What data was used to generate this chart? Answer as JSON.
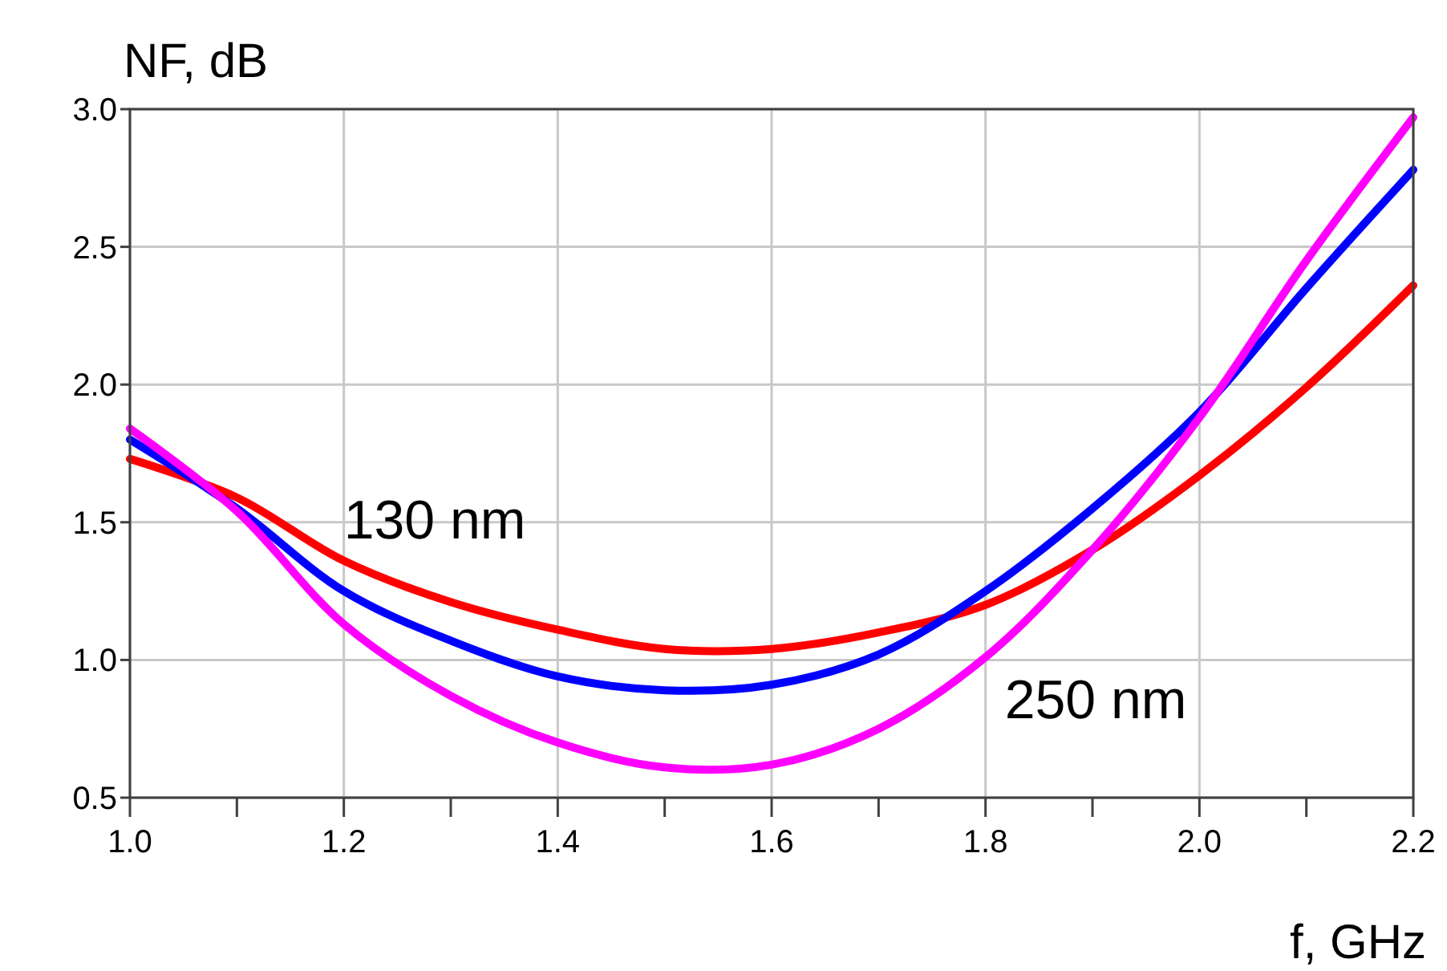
{
  "chart_data": {
    "type": "line",
    "xlabel": "f, GHz",
    "ylabel": "NF, dB",
    "x": [
      1.0,
      1.1,
      1.2,
      1.3,
      1.4,
      1.5,
      1.6,
      1.7,
      1.8,
      1.9,
      2.0,
      2.1,
      2.2
    ],
    "series": [
      {
        "name": "130 nm",
        "color": "#ff0000",
        "values": [
          1.73,
          1.59,
          1.36,
          1.21,
          1.11,
          1.04,
          1.04,
          1.1,
          1.2,
          1.4,
          1.67,
          1.99,
          2.36
        ]
      },
      {
        "color": "#0000ff",
        "values": [
          1.8,
          1.55,
          1.25,
          1.07,
          0.94,
          0.89,
          0.91,
          1.02,
          1.25,
          1.55,
          1.9,
          2.35,
          2.78
        ]
      },
      {
        "name": "250 nm",
        "color": "#ff00ff",
        "values": [
          1.84,
          1.54,
          1.13,
          0.87,
          0.7,
          0.61,
          0.62,
          0.75,
          1.01,
          1.4,
          1.88,
          2.45,
          2.97
        ]
      }
    ],
    "xlim": [
      1.0,
      2.2
    ],
    "xticks": [
      {
        "value": 1.0,
        "label": "1.0"
      },
      {
        "value": 1.1,
        "label": null
      },
      {
        "value": 1.2,
        "label": "1.2"
      },
      {
        "value": 1.3,
        "label": null
      },
      {
        "value": 1.4,
        "label": "1.4"
      },
      {
        "value": 1.5,
        "label": null
      },
      {
        "value": 1.6,
        "label": "1.6"
      },
      {
        "value": 1.7,
        "label": null
      },
      {
        "value": 1.8,
        "label": "1.8"
      },
      {
        "value": 1.9,
        "label": null
      },
      {
        "value": 2.0,
        "label": "2.0"
      },
      {
        "value": 2.1,
        "label": null
      },
      {
        "value": 2.2,
        "label": "2.2"
      }
    ],
    "ylim": [
      0.5,
      3.0
    ],
    "yticks": [
      0.5,
      {
        "value": 1.0,
        "label": "1.0"
      },
      1.5,
      {
        "value": 2.0,
        "label": "2.0"
      },
      2.5,
      {
        "value": 3.0,
        "label": "3.0"
      }
    ],
    "grid": true,
    "marker": "none",
    "line_style": "solid"
  }
}
